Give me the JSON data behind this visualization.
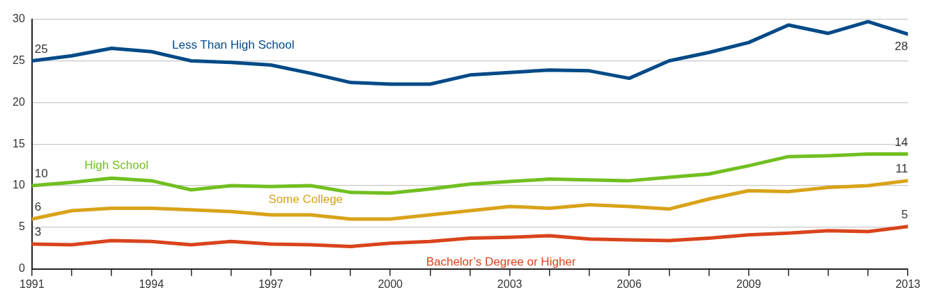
{
  "chart_data": {
    "type": "line",
    "x": [
      1991,
      1992,
      1993,
      1994,
      1995,
      1996,
      1997,
      1998,
      1999,
      2000,
      2001,
      2002,
      2003,
      2004,
      2005,
      2006,
      2007,
      2008,
      2009,
      2010,
      2011,
      2012,
      2013
    ],
    "xlim": [
      1991,
      2013
    ],
    "xticks": [
      1991,
      {
        "value": 1992,
        "label": null
      },
      {
        "value": 1993,
        "label": null
      },
      1994,
      {
        "value": 1995,
        "label": null
      },
      {
        "value": 1996,
        "label": null
      },
      1997,
      {
        "value": 1998,
        "label": null
      },
      {
        "value": 1999,
        "label": null
      },
      2000,
      {
        "value": 2001,
        "label": null
      },
      {
        "value": 2002,
        "label": null
      },
      2003,
      {
        "value": 2004,
        "label": null
      },
      {
        "value": 2005,
        "label": null
      },
      2006,
      {
        "value": 2007,
        "label": null
      },
      {
        "value": 2008,
        "label": null
      },
      2009,
      {
        "value": 2010,
        "label": null
      },
      {
        "value": 2011,
        "label": null
      },
      {
        "value": 2012,
        "label": null
      },
      2013
    ],
    "ylim": [
      0,
      30
    ],
    "yticks": [
      0,
      5,
      10,
      15,
      20,
      25,
      30
    ],
    "grid": "y",
    "legend": false,
    "marker": "none",
    "line_style": "solid",
    "series": [
      {
        "name": "Less Than High School",
        "color": "#004a87",
        "values": [
          25.0,
          25.6,
          26.5,
          26.1,
          25.0,
          24.8,
          24.5,
          23.5,
          22.4,
          22.2,
          22.2,
          23.3,
          23.6,
          23.9,
          23.8,
          22.9,
          25.0,
          26.0,
          27.2,
          29.3,
          28.3,
          29.7,
          28.2
        ],
        "value_labels": [
          "25",
          null,
          null,
          null,
          null,
          null,
          null,
          null,
          null,
          null,
          null,
          null,
          null,
          null,
          null,
          null,
          null,
          null,
          null,
          null,
          null,
          null,
          "28"
        ]
      },
      {
        "name": "High School",
        "color": "#72bf21",
        "values": [
          10.0,
          10.4,
          10.9,
          10.6,
          9.5,
          10.0,
          9.9,
          10.0,
          9.2,
          9.1,
          9.6,
          10.2,
          10.5,
          10.8,
          10.7,
          10.6,
          11.0,
          11.4,
          12.4,
          13.5,
          13.6,
          13.8,
          13.8
        ],
        "value_labels": [
          "10",
          null,
          null,
          null,
          null,
          null,
          null,
          null,
          null,
          null,
          null,
          null,
          null,
          null,
          null,
          null,
          null,
          null,
          null,
          null,
          null,
          null,
          "14"
        ]
      },
      {
        "name": "Some College",
        "color": "#d9a31a",
        "values": [
          6.0,
          7.0,
          7.3,
          7.3,
          7.1,
          6.9,
          6.5,
          6.5,
          6.0,
          6.0,
          6.5,
          7.0,
          7.5,
          7.3,
          7.7,
          7.5,
          7.2,
          8.4,
          9.4,
          9.3,
          9.8,
          10.0,
          10.6
        ],
        "value_labels": [
          "6",
          null,
          null,
          null,
          null,
          null,
          null,
          null,
          null,
          null,
          null,
          null,
          null,
          null,
          null,
          null,
          null,
          null,
          null,
          null,
          null,
          null,
          "11"
        ]
      },
      {
        "name": "Bachelor’s Degree or Higher",
        "color": "#d9441c",
        "values": [
          3.0,
          2.9,
          3.4,
          3.3,
          2.9,
          3.3,
          3.0,
          2.9,
          2.7,
          3.1,
          3.3,
          3.7,
          3.8,
          4.0,
          3.6,
          3.5,
          3.4,
          3.7,
          4.1,
          4.3,
          4.6,
          4.5,
          5.1
        ],
        "value_labels": [
          "3",
          null,
          null,
          null,
          null,
          null,
          null,
          null,
          null,
          null,
          null,
          null,
          null,
          null,
          null,
          null,
          null,
          null,
          null,
          null,
          null,
          null,
          "5"
        ]
      }
    ]
  }
}
